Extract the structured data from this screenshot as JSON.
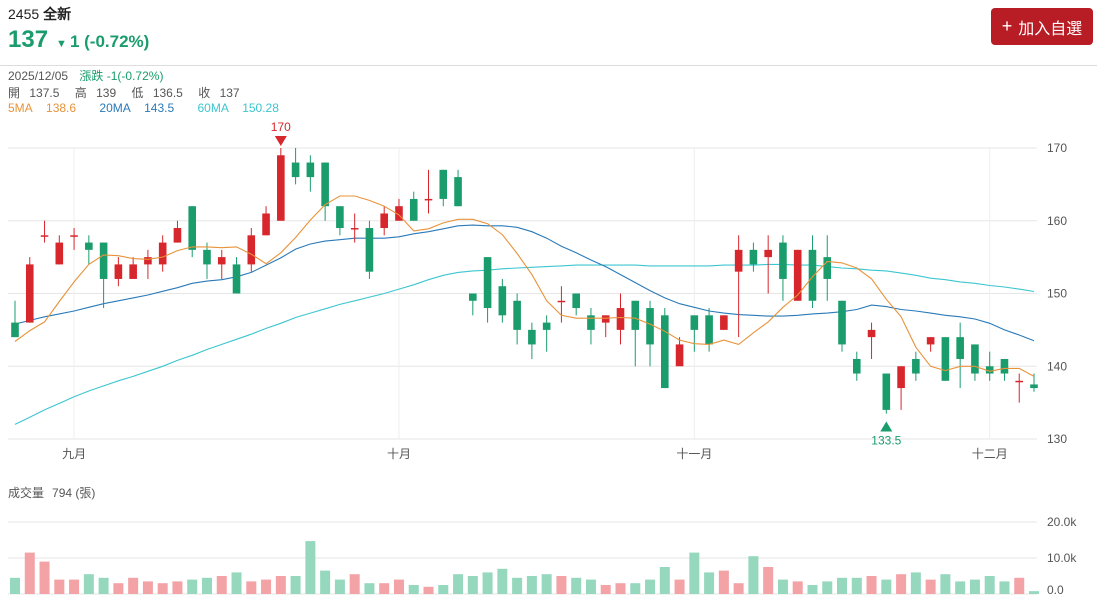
{
  "stock": {
    "code": "2455",
    "name": "全新",
    "price": "137",
    "change_arrow": "▼",
    "change": "1 (-0.72%)"
  },
  "add_button": {
    "icon": "plus-icon",
    "label": "加入自選"
  },
  "info": {
    "date": "2025/12/05",
    "change_label": "漲跌",
    "change_value": "-1(-0.72%)",
    "open_label": "開",
    "open": "137.5",
    "high_label": "高",
    "high": "139",
    "low_label": "低",
    "low": "136.5",
    "close_label": "收",
    "close": "137",
    "ma5_label": "5MA",
    "ma5": "138.6",
    "ma20_label": "20MA",
    "ma20": "143.5",
    "ma60_label": "60MA",
    "ma60": "150.28"
  },
  "volume_header": {
    "label": "成交量",
    "value": "794 (張)"
  },
  "colors": {
    "up": "#d7262c",
    "down": "#1a9c6c",
    "ma5": "#e8933a",
    "ma20": "#2a7ab8",
    "ma60": "#3cc6d0",
    "vol_up": "#f3a2a6",
    "vol_down": "#95d8be"
  },
  "chart_data": [
    {
      "type": "candlestick",
      "y_ticks": [
        "170",
        "160",
        "150",
        "140",
        "130"
      ],
      "ylim": [
        130,
        170
      ],
      "x_labels": [
        "九月",
        "十月",
        "十一月",
        "十二月"
      ],
      "high_marker": "170",
      "low_marker": "133.5",
      "candles": [
        [
          146,
          144,
          149,
          144
        ],
        [
          146,
          154,
          155,
          146
        ],
        [
          158,
          158,
          160,
          157
        ],
        [
          154,
          157,
          158,
          154
        ],
        [
          158,
          158,
          159,
          156
        ],
        [
          157,
          156,
          158,
          154
        ],
        [
          157,
          152,
          157,
          148
        ],
        [
          152,
          154,
          155,
          151
        ],
        [
          152,
          154,
          155,
          152
        ],
        [
          154,
          155,
          156,
          152
        ],
        [
          154,
          157,
          158,
          153
        ],
        [
          157,
          159,
          160,
          157
        ],
        [
          162,
          156,
          162,
          155
        ],
        [
          156,
          154,
          157,
          152
        ],
        [
          154,
          155,
          156,
          152
        ],
        [
          154,
          150,
          155,
          150
        ],
        [
          154,
          158,
          159,
          153
        ],
        [
          158,
          161,
          162,
          158
        ],
        [
          160,
          169,
          170,
          161
        ],
        [
          168,
          166,
          170,
          165
        ],
        [
          168,
          166,
          169,
          164
        ],
        [
          168,
          162,
          168,
          160
        ],
        [
          162,
          159,
          162,
          158
        ],
        [
          159,
          159,
          161,
          157
        ],
        [
          159,
          153,
          160,
          152
        ],
        [
          159,
          161,
          162,
          158
        ],
        [
          160,
          162,
          163,
          160
        ],
        [
          163,
          160,
          164,
          160
        ],
        [
          163,
          163,
          167,
          161
        ],
        [
          167,
          163,
          167,
          162
        ],
        [
          166,
          162,
          167,
          162
        ],
        [
          150,
          149,
          150,
          147
        ],
        [
          155,
          148,
          155,
          146
        ],
        [
          151,
          147,
          152,
          146
        ],
        [
          149,
          145,
          150,
          143
        ],
        [
          145,
          143,
          146,
          141
        ],
        [
          146,
          145,
          147,
          142
        ],
        [
          149,
          149,
          151,
          146
        ],
        [
          150,
          148,
          150,
          147
        ],
        [
          147,
          145,
          148,
          143
        ],
        [
          146,
          147,
          147,
          144
        ],
        [
          145,
          148,
          150,
          143
        ],
        [
          149,
          145,
          149,
          140
        ],
        [
          148,
          143,
          149,
          140
        ],
        [
          147,
          137,
          148,
          137
        ],
        [
          140,
          143,
          144,
          141
        ],
        [
          147,
          145,
          147,
          142
        ],
        [
          147,
          143,
          148,
          142
        ],
        [
          145,
          147,
          147,
          145
        ],
        [
          153,
          156,
          158,
          144
        ],
        [
          156,
          154,
          157,
          153
        ],
        [
          155,
          156,
          158,
          150
        ],
        [
          157,
          152,
          158,
          149
        ],
        [
          149,
          156,
          156,
          149
        ],
        [
          156,
          149,
          158,
          148
        ],
        [
          155,
          152,
          158,
          149
        ],
        [
          149,
          143,
          149,
          142
        ],
        [
          141,
          139,
          142,
          138
        ],
        [
          144,
          145,
          146,
          141
        ],
        [
          139,
          134,
          139,
          133.5
        ],
        [
          137,
          140,
          140,
          134
        ],
        [
          141,
          139,
          142,
          138
        ],
        [
          143,
          144,
          144,
          142
        ],
        [
          144,
          138,
          144,
          138
        ],
        [
          144,
          141,
          146,
          137
        ],
        [
          143,
          139,
          143,
          138
        ],
        [
          140,
          139,
          142,
          138
        ],
        [
          141,
          139,
          141,
          138
        ],
        [
          138,
          138,
          139,
          135
        ],
        [
          137.5,
          137,
          139,
          136.5
        ]
      ],
      "ma5": [
        143.4,
        144.9,
        146.1,
        148.9,
        151.6,
        154.0,
        155.3,
        155.2,
        154.8,
        154.7,
        155.0,
        155.9,
        156.4,
        156.4,
        156.3,
        156.4,
        155.4,
        154.1,
        155.6,
        157.7,
        160.1,
        162.2,
        163.4,
        163.4,
        162.8,
        162.0,
        160.8,
        158.6,
        158.9,
        159.7,
        160.2,
        160.2,
        159.6,
        158.1,
        155.5,
        152.6,
        149.0,
        147.0,
        146.6,
        146.6,
        146.6,
        146.7,
        146.6,
        145.8,
        144.8,
        143.6,
        143.1,
        143.0,
        143.6,
        143.0,
        144.6,
        146.1,
        148.1,
        149.8,
        152.3,
        154.4,
        154.2,
        153.5,
        152.0,
        149.2,
        146.8,
        142.6,
        140.0,
        139.4,
        140.0,
        140.0,
        139.3,
        139.7,
        139.7,
        138.6
      ],
      "ma20": [
        145.8,
        146.3,
        146.8,
        147.2,
        147.6,
        148.1,
        148.6,
        149.0,
        149.4,
        149.8,
        150.3,
        150.8,
        151.4,
        151.7,
        151.9,
        152.3,
        152.9,
        153.9,
        154.9,
        156.1,
        156.8,
        157.2,
        157.4,
        157.6,
        157.6,
        157.6,
        157.8,
        158.2,
        158.5,
        158.9,
        159.3,
        159.4,
        159.3,
        159.3,
        159.1,
        158.5,
        157.6,
        156.5,
        155.6,
        154.6,
        153.7,
        152.6,
        151.5,
        150.4,
        149.4,
        148.6,
        148.1,
        147.6,
        147.3,
        147.1,
        147.0,
        146.9,
        146.9,
        147.0,
        147.2,
        147.3,
        147.5,
        147.8,
        148.4,
        148.2,
        147.8,
        147.6,
        147.3,
        147.0,
        146.8,
        146.5,
        145.9,
        145.0,
        144.3,
        143.5
      ],
      "ma60": [
        132.0,
        133.0,
        134.0,
        134.9,
        135.8,
        136.6,
        137.3,
        138.0,
        138.6,
        139.3,
        140.0,
        140.8,
        141.5,
        142.3,
        143.0,
        143.7,
        144.4,
        145.2,
        145.9,
        146.7,
        147.3,
        147.9,
        148.5,
        149.0,
        149.5,
        150.0,
        150.6,
        151.2,
        151.9,
        152.5,
        152.9,
        153.1,
        153.2,
        153.4,
        153.5,
        153.6,
        153.7,
        153.8,
        153.9,
        153.9,
        153.9,
        153.9,
        153.9,
        153.8,
        153.8,
        153.8,
        153.8,
        153.8,
        153.9,
        153.9,
        153.9,
        154.0,
        154.0,
        153.9,
        153.9,
        153.7,
        153.5,
        153.4,
        153.2,
        153.1,
        152.8,
        152.5,
        152.1,
        151.9,
        151.6,
        151.4,
        151.1,
        150.9,
        150.6,
        150.28
      ]
    },
    {
      "type": "bar",
      "title": "成交量",
      "y_ticks": [
        "20.0k",
        "10.0k",
        "0.0"
      ],
      "ylim": [
        0,
        20000
      ],
      "values": [
        4500,
        11500,
        9000,
        4000,
        4000,
        5500,
        4500,
        3000,
        4500,
        3500,
        3000,
        3500,
        4000,
        4500,
        5000,
        6000,
        3500,
        4000,
        5000,
        5000,
        14700,
        6500,
        4000,
        5500,
        3000,
        3000,
        4000,
        2500,
        2000,
        2500,
        5500,
        5000,
        6000,
        7000,
        4500,
        5000,
        5500,
        5000,
        4500,
        4000,
        2500,
        3000,
        3000,
        4000,
        7500,
        4000,
        11500,
        6000,
        6500,
        3000,
        10500,
        7500,
        4000,
        3500,
        2500,
        3500,
        4500,
        4500,
        5000,
        4000,
        5500,
        6000,
        4000,
        5500,
        3500,
        4000,
        5000,
        3500,
        4500,
        794
      ]
    }
  ]
}
